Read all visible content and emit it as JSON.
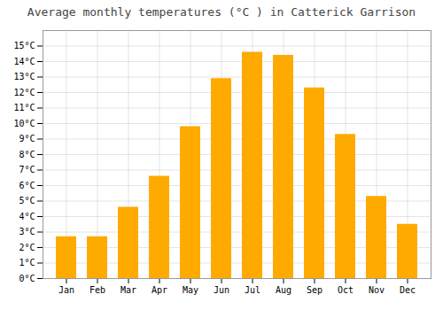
{
  "chart_data": {
    "type": "bar",
    "title": "Average monthly temperatures (°C ) in Catterick Garrison",
    "categories": [
      "Jan",
      "Feb",
      "Mar",
      "Apr",
      "May",
      "Jun",
      "Jul",
      "Aug",
      "Sep",
      "Oct",
      "Nov",
      "Dec"
    ],
    "values": [
      2.7,
      2.7,
      4.6,
      6.6,
      9.8,
      12.9,
      14.6,
      14.4,
      12.3,
      9.3,
      5.3,
      3.5
    ],
    "color": "#FFAA00",
    "ylim": [
      0,
      16
    ],
    "yticks": [
      {
        "value": 0,
        "label": "0°C"
      },
      {
        "value": 1,
        "label": "1°C"
      },
      {
        "value": 2,
        "label": "2°C"
      },
      {
        "value": 3,
        "label": "3°C"
      },
      {
        "value": 4,
        "label": "4°C"
      },
      {
        "value": 5,
        "label": "5°C"
      },
      {
        "value": 6,
        "label": "6°C"
      },
      {
        "value": 7,
        "label": "7°C"
      },
      {
        "value": 8,
        "label": "8°C"
      },
      {
        "value": 9,
        "label": "9°C"
      },
      {
        "value": 10,
        "label": "10°C"
      },
      {
        "value": 11,
        "label": "11°C"
      },
      {
        "value": 12,
        "label": "12°C"
      },
      {
        "value": 13,
        "label": "13°C"
      },
      {
        "value": 14,
        "label": "14°C"
      },
      {
        "value": 15,
        "label": "15°C"
      }
    ],
    "grid": true
  }
}
